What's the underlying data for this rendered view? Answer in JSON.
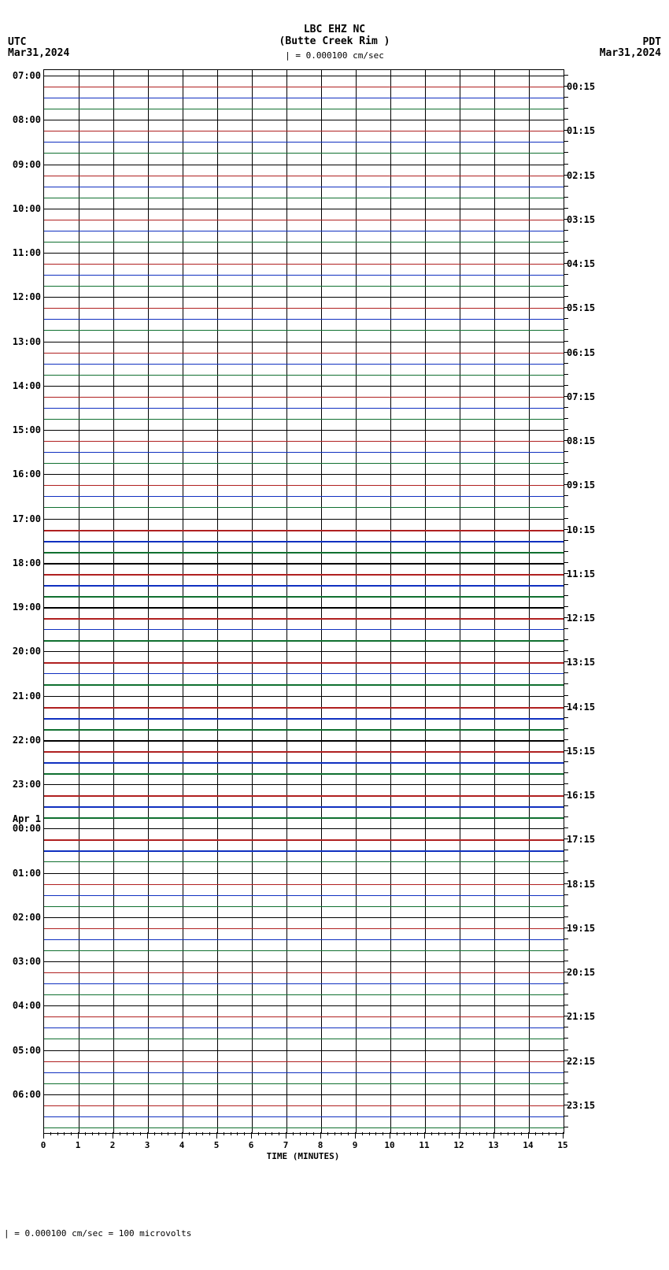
{
  "header": {
    "station": "LBC EHZ NC",
    "location": "(Butte Creek Rim )",
    "scale_bar": "| = 0.000100 cm/sec"
  },
  "left": {
    "tz": "UTC",
    "date": "Mar31,2024",
    "mid_date": "Apr 1"
  },
  "right": {
    "tz": "PDT",
    "date": "Mar31,2024"
  },
  "footer": "| = 0.000100 cm/sec =   100 microvolts",
  "plot": {
    "x_ticks": [
      0,
      1,
      2,
      3,
      4,
      5,
      6,
      7,
      8,
      9,
      10,
      11,
      12,
      13,
      14,
      15
    ],
    "x_title": "TIME (MINUTES)",
    "y_count": 96,
    "left_labels": {
      "0": "07:00",
      "4": "08:00",
      "8": "09:00",
      "12": "10:00",
      "16": "11:00",
      "20": "12:00",
      "24": "13:00",
      "28": "14:00",
      "32": "15:00",
      "36": "16:00",
      "40": "17:00",
      "44": "18:00",
      "48": "19:00",
      "52": "20:00",
      "56": "21:00",
      "60": "22:00",
      "64": "23:00",
      "68": "00:00",
      "72": "01:00",
      "76": "02:00",
      "80": "03:00",
      "84": "04:00",
      "88": "05:00",
      "92": "06:00"
    },
    "right_labels": {
      "1": "00:15",
      "5": "01:15",
      "9": "02:15",
      "13": "03:15",
      "17": "04:15",
      "21": "05:15",
      "25": "06:15",
      "29": "07:15",
      "33": "08:15",
      "37": "09:15",
      "41": "10:15",
      "45": "11:15",
      "49": "12:15",
      "53": "13:15",
      "57": "14:15",
      "61": "15:15",
      "65": "16:15",
      "69": "17:15",
      "73": "18:15",
      "77": "19:15",
      "81": "20:15",
      "85": "21:15",
      "89": "22:15",
      "93": "23:15"
    },
    "color_cycle": [
      "#000000",
      "#b02020",
      "#1030c0",
      "#107030"
    ],
    "thick_lines": [
      41,
      42,
      43,
      44,
      45,
      46,
      47,
      48,
      49,
      51,
      53,
      55,
      57,
      58,
      59,
      60,
      61,
      62,
      63,
      65,
      66,
      67,
      69,
      70
    ]
  }
}
